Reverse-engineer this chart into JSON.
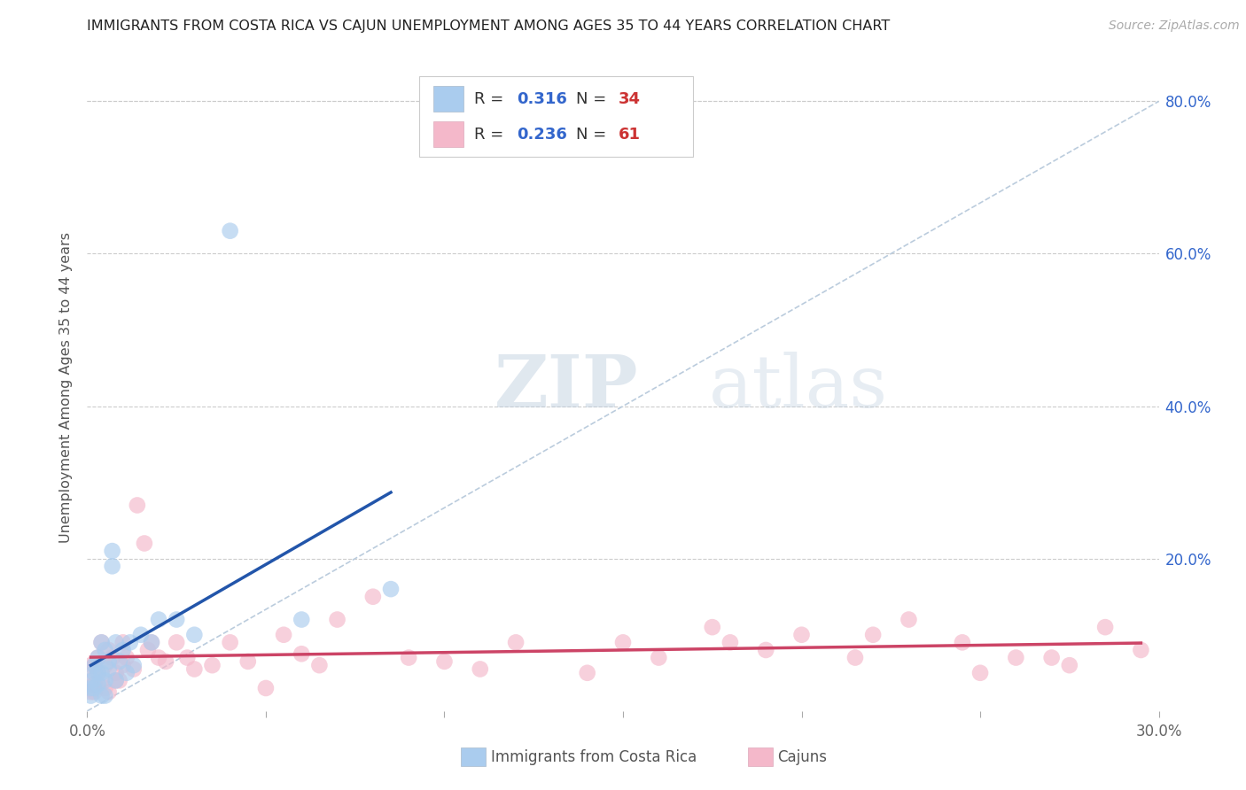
{
  "title": "IMMIGRANTS FROM COSTA RICA VS CAJUN UNEMPLOYMENT AMONG AGES 35 TO 44 YEARS CORRELATION CHART",
  "source": "Source: ZipAtlas.com",
  "ylabel": "Unemployment Among Ages 35 to 44 years",
  "xlim": [
    0.0,
    0.3
  ],
  "ylim": [
    0.0,
    0.85
  ],
  "color_blue": "#aaccee",
  "color_pink": "#f4b8ca",
  "color_blue_line": "#2255aa",
  "color_pink_line": "#cc4466",
  "color_dashed": "#bbccdd",
  "R1": "0.316",
  "N1": "34",
  "R2": "0.236",
  "N2": "61",
  "legend_label1": "Immigrants from Costa Rica",
  "legend_label2": "Cajuns",
  "text_color_R": "#3366cc",
  "text_color_N": "#cc3333",
  "costa_rica_x": [
    0.001,
    0.001,
    0.0015,
    0.002,
    0.002,
    0.002,
    0.003,
    0.003,
    0.003,
    0.004,
    0.004,
    0.004,
    0.005,
    0.005,
    0.005,
    0.006,
    0.006,
    0.007,
    0.007,
    0.008,
    0.008,
    0.009,
    0.01,
    0.011,
    0.012,
    0.013,
    0.015,
    0.018,
    0.02,
    0.025,
    0.03,
    0.04,
    0.06,
    0.085
  ],
  "costa_rica_y": [
    0.02,
    0.03,
    0.04,
    0.03,
    0.05,
    0.06,
    0.05,
    0.035,
    0.07,
    0.02,
    0.09,
    0.05,
    0.04,
    0.08,
    0.02,
    0.055,
    0.065,
    0.19,
    0.21,
    0.04,
    0.09,
    0.065,
    0.08,
    0.05,
    0.09,
    0.06,
    0.1,
    0.09,
    0.12,
    0.12,
    0.1,
    0.63,
    0.12,
    0.16
  ],
  "cajun_x": [
    0.001,
    0.001,
    0.001,
    0.002,
    0.002,
    0.002,
    0.003,
    0.003,
    0.004,
    0.004,
    0.005,
    0.005,
    0.006,
    0.006,
    0.007,
    0.008,
    0.008,
    0.009,
    0.01,
    0.01,
    0.011,
    0.013,
    0.014,
    0.016,
    0.017,
    0.018,
    0.02,
    0.022,
    0.025,
    0.028,
    0.03,
    0.035,
    0.04,
    0.045,
    0.05,
    0.055,
    0.06,
    0.065,
    0.07,
    0.08,
    0.09,
    0.1,
    0.11,
    0.12,
    0.14,
    0.15,
    0.16,
    0.175,
    0.19,
    0.2,
    0.215,
    0.23,
    0.245,
    0.26,
    0.275,
    0.285,
    0.295,
    0.25,
    0.27,
    0.22,
    0.18
  ],
  "cajun_y": [
    0.025,
    0.04,
    0.06,
    0.035,
    0.06,
    0.025,
    0.05,
    0.07,
    0.04,
    0.09,
    0.03,
    0.06,
    0.08,
    0.025,
    0.07,
    0.05,
    0.04,
    0.04,
    0.06,
    0.09,
    0.07,
    0.055,
    0.27,
    0.22,
    0.08,
    0.09,
    0.07,
    0.065,
    0.09,
    0.07,
    0.055,
    0.06,
    0.09,
    0.065,
    0.03,
    0.1,
    0.075,
    0.06,
    0.12,
    0.15,
    0.07,
    0.065,
    0.055,
    0.09,
    0.05,
    0.09,
    0.07,
    0.11,
    0.08,
    0.1,
    0.07,
    0.12,
    0.09,
    0.07,
    0.06,
    0.11,
    0.08,
    0.05,
    0.07,
    0.1,
    0.09
  ]
}
